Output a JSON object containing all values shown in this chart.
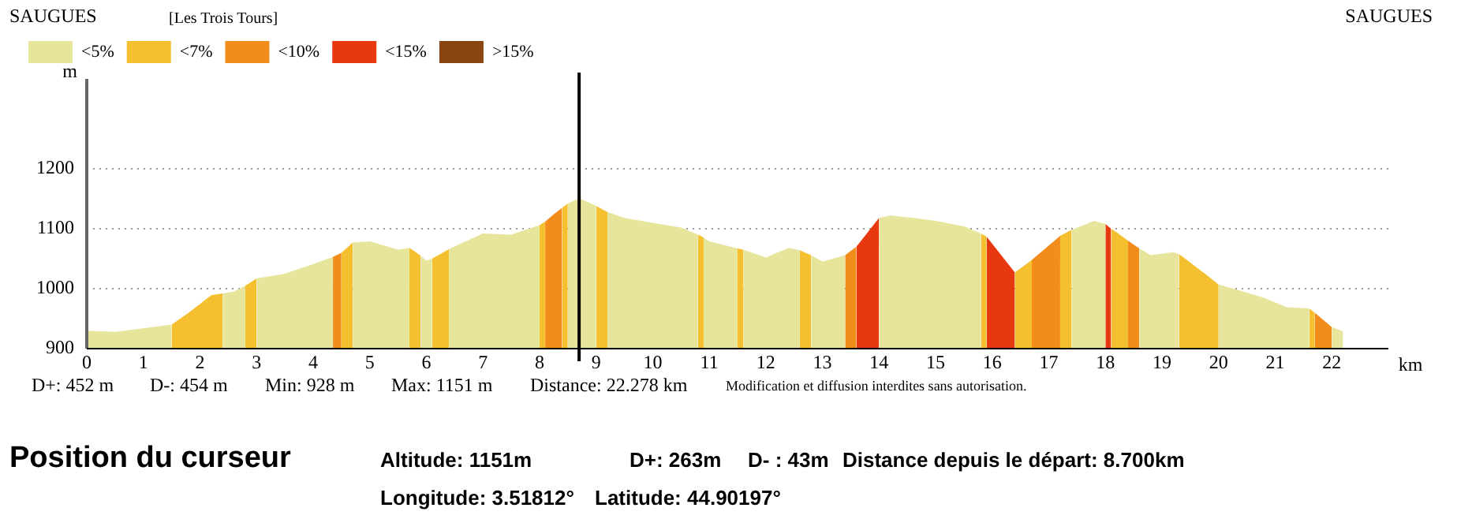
{
  "chart_data": {
    "type": "area",
    "title": "SAUGUES",
    "subtitle": "[Les Trois Tours]",
    "xlabel": "km",
    "ylabel": "m",
    "xlim": [
      0,
      23
    ],
    "ylim": [
      900,
      1350
    ],
    "xticks": [
      0,
      1,
      2,
      3,
      4,
      5,
      6,
      7,
      8,
      9,
      10,
      11,
      12,
      13,
      14,
      15,
      16,
      17,
      18,
      19,
      20,
      21,
      22
    ],
    "yticks": [
      900,
      1000,
      1100,
      1200
    ],
    "grid": "y",
    "legend": "top left",
    "x": [
      0,
      0.5,
      1,
      1.5,
      1.8,
      2.2,
      2.4,
      2.6,
      2.8,
      2.9,
      3.0,
      3.5,
      4.0,
      4.35,
      4.5,
      4.7,
      5.0,
      5.5,
      5.7,
      5.8,
      5.9,
      6.0,
      6.1,
      6.25,
      6.4,
      7.0,
      7.5,
      8.0,
      8.1,
      8.25,
      8.4,
      8.5,
      8.7,
      9.0,
      9.1,
      9.2,
      9.5,
      10,
      10.5,
      10.8,
      10.85,
      10.9,
      11.0,
      11.5,
      11.55,
      11.6,
      12.0,
      12.4,
      12.6,
      12.7,
      12.8,
      13.0,
      13.4,
      13.6,
      14.0,
      14.2,
      14.7,
      15.0,
      15.5,
      15.8,
      15.9,
      16.15,
      16.4,
      16.7,
      17.0,
      17.2,
      17.4,
      17.8,
      18.0,
      18.1,
      18.2,
      18.4,
      18.6,
      18.8,
      19.2,
      19.3,
      19.8,
      20.0,
      20.3,
      20.8,
      21.2,
      21.6,
      21.7,
      22.0,
      22.2
    ],
    "series": [
      {
        "name": "<5%",
        "color": "#e6e59b",
        "values": [
          930,
          928,
          934,
          940,
          null,
          null,
          992,
          995,
          1005,
          null,
          1017,
          1025,
          1041,
          1053,
          null,
          1077,
          1079,
          1065,
          1068,
          null,
          1055,
          1047,
          1050,
          null,
          1066,
          1092,
          1090,
          1106,
          null,
          null,
          null,
          1142,
          1151,
          1138,
          null,
          1128,
          1118,
          1110,
          1102,
          1090,
          null,
          1085,
          1079,
          1067,
          null,
          1065,
          1052,
          1068,
          1064,
          null,
          1056,
          1045,
          1056,
          null,
          1118,
          1122,
          1117,
          1113,
          1104,
          1092,
          null,
          null,
          null,
          null,
          null,
          null,
          1098,
          1113,
          1108,
          null,
          null,
          null,
          1067,
          1056,
          1061,
          1058,
          null,
          1007,
          999,
          985,
          969,
          967,
          null,
          936,
          929
        ]
      },
      {
        "name": "<7%",
        "color": "#f4c030",
        "values": [
          null,
          null,
          null,
          940,
          960,
          989,
          992,
          null,
          1005,
          1011,
          1017,
          null,
          null,
          null,
          1060,
          1077,
          null,
          null,
          1068,
          1062,
          1055,
          null,
          1050,
          1058,
          1066,
          null,
          null,
          1106,
          1112,
          null,
          1135,
          1142,
          null,
          1138,
          1133,
          1128,
          null,
          null,
          null,
          1090,
          1088,
          1085,
          null,
          1067,
          1066,
          1065,
          null,
          null,
          1064,
          1060,
          1056,
          null,
          null,
          null,
          null,
          null,
          null,
          null,
          null,
          1092,
          1087,
          null,
          1027,
          1048,
          null,
          1088,
          1098,
          null,
          null,
          1100,
          1094,
          1080,
          null,
          null,
          null,
          1058,
          1022,
          1007,
          null,
          null,
          null,
          967,
          960,
          null,
          null
        ]
      },
      {
        "name": "<10%",
        "color": "#f28c1a",
        "values": [
          null,
          null,
          null,
          null,
          null,
          null,
          null,
          null,
          null,
          null,
          null,
          null,
          null,
          1053,
          1060,
          null,
          null,
          null,
          null,
          null,
          null,
          null,
          null,
          null,
          null,
          null,
          null,
          null,
          1112,
          1124,
          1135,
          null,
          null,
          null,
          null,
          null,
          null,
          null,
          null,
          null,
          null,
          null,
          null,
          null,
          null,
          null,
          null,
          null,
          null,
          null,
          null,
          null,
          1056,
          1070,
          null,
          null,
          null,
          null,
          null,
          null,
          null,
          null,
          null,
          1048,
          1072,
          1088,
          null,
          null,
          null,
          null,
          null,
          1080,
          1067,
          null,
          null,
          null,
          null,
          null,
          null,
          null,
          null,
          null,
          960,
          936,
          null
        ]
      },
      {
        "name": "<15%",
        "color": "#e8380f",
        "values": [
          null,
          null,
          null,
          null,
          null,
          null,
          null,
          null,
          null,
          null,
          null,
          null,
          null,
          null,
          null,
          null,
          null,
          null,
          null,
          null,
          null,
          null,
          null,
          null,
          null,
          null,
          null,
          null,
          null,
          null,
          null,
          null,
          null,
          null,
          null,
          null,
          null,
          null,
          null,
          null,
          null,
          null,
          null,
          null,
          null,
          null,
          null,
          null,
          null,
          null,
          null,
          null,
          null,
          1070,
          1118,
          null,
          null,
          null,
          null,
          null,
          1087,
          1057,
          1027,
          null,
          null,
          null,
          null,
          null,
          1108,
          1100,
          null,
          null,
          null,
          null,
          null,
          null,
          null,
          null,
          null,
          null,
          null,
          null,
          null,
          null,
          null
        ]
      },
      {
        "name": ">15%",
        "color": "#8b4513",
        "values": [
          null,
          null,
          null,
          null,
          null,
          null,
          null,
          null,
          null,
          null,
          null,
          null,
          null,
          null,
          null,
          null,
          null,
          null,
          null,
          null,
          null,
          null,
          null,
          null,
          null,
          null,
          null,
          null,
          null,
          null,
          null,
          null,
          null,
          null,
          null,
          null,
          null,
          null,
          null,
          null,
          null,
          null,
          null,
          null,
          null,
          null,
          null,
          null,
          null,
          null,
          null,
          null,
          null,
          null,
          null,
          null,
          null,
          null,
          null,
          null,
          null,
          null,
          null,
          null,
          null,
          null,
          null,
          null,
          null,
          null,
          null,
          null,
          null,
          null,
          null,
          null,
          null,
          null,
          null,
          null,
          null,
          null,
          null,
          null,
          null
        ]
      }
    ],
    "ref_lines": [
      {
        "axis": "x",
        "value": 8.7,
        "color": "#000000"
      }
    ],
    "annotations": [
      "SAUGUES",
      "D+: 452 m",
      "D-: 454 m",
      "Min: 928 m",
      "Max: 1151 m",
      "Distance: 22.278 km",
      "Modification et diffusion interdites sans autorisation.",
      "Position du curseur",
      "Altitude: 1151m",
      "D+: 263m",
      "D- : 43m",
      "Distance depuis le départ: 8.700km",
      "Longitude: 3.51812°",
      "Latitude: 44.90197°"
    ]
  }
}
